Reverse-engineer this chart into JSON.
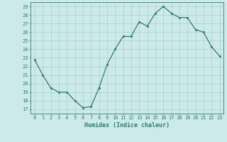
{
  "x": [
    0,
    1,
    2,
    3,
    4,
    5,
    6,
    7,
    8,
    9,
    10,
    11,
    12,
    13,
    14,
    15,
    16,
    17,
    18,
    19,
    20,
    21,
    22,
    23
  ],
  "y": [
    22.8,
    21.0,
    19.5,
    19.0,
    19.0,
    18.0,
    17.2,
    17.3,
    19.5,
    22.2,
    24.0,
    25.5,
    25.5,
    27.2,
    26.7,
    28.2,
    29.0,
    28.2,
    27.7,
    27.7,
    26.3,
    26.0,
    24.3,
    23.2
  ],
  "xlabel": "Humidex (Indice chaleur)",
  "xlim": [
    -0.5,
    23.5
  ],
  "ylim": [
    16.5,
    29.5
  ],
  "yticks": [
    17,
    18,
    19,
    20,
    21,
    22,
    23,
    24,
    25,
    26,
    27,
    28,
    29
  ],
  "xticks": [
    0,
    1,
    2,
    3,
    4,
    5,
    6,
    7,
    8,
    9,
    10,
    11,
    12,
    13,
    14,
    15,
    16,
    17,
    18,
    19,
    20,
    21,
    22,
    23
  ],
  "line_color": "#2d7d6f",
  "marker_color": "#2d7d6f",
  "bg_color": "#cceaea",
  "grid_color": "#aacece",
  "axis_color": "#2d7d6f",
  "label_color": "#2d7d6f",
  "xlabel_color": "#2d7d6f"
}
